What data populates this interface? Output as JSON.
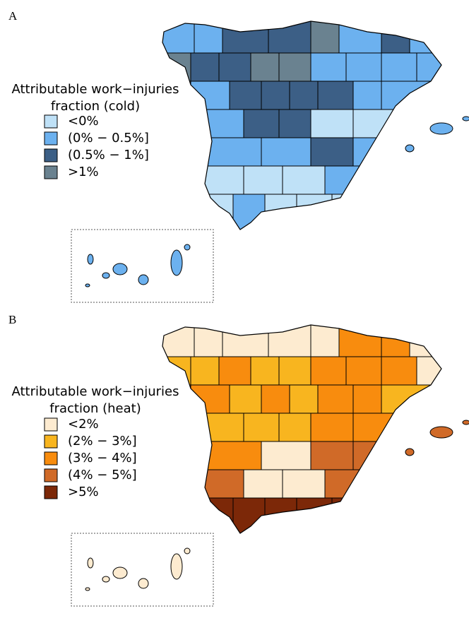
{
  "panels": [
    {
      "label": "A",
      "legend": {
        "title": [
          "Attributable work−injuries",
          "fraction (cold)"
        ],
        "items": [
          {
            "label": "<0%",
            "color": "#bfe1f7"
          },
          {
            "label": "(0% − 0.5%]",
            "color": "#6cb1ef"
          },
          {
            "label": "(0.5% − 1%]",
            "color": "#3c5f86"
          },
          {
            "label": ">1%",
            "color": "#6a8290"
          }
        ]
      }
    },
    {
      "label": "B",
      "legend": {
        "title": [
          "Attributable work−injuries",
          "fraction (heat)"
        ],
        "items": [
          {
            "label": "<2%",
            "color": "#fdebd0"
          },
          {
            "label": "(2% − 3%]",
            "color": "#f8b51f"
          },
          {
            "label": "(3% − 4%]",
            "color": "#f88c0e"
          },
          {
            "label": "(4% − 5%]",
            "color": "#d06a28"
          },
          {
            "label": ">5%",
            "color": "#7c2808"
          }
        ]
      }
    }
  ]
}
